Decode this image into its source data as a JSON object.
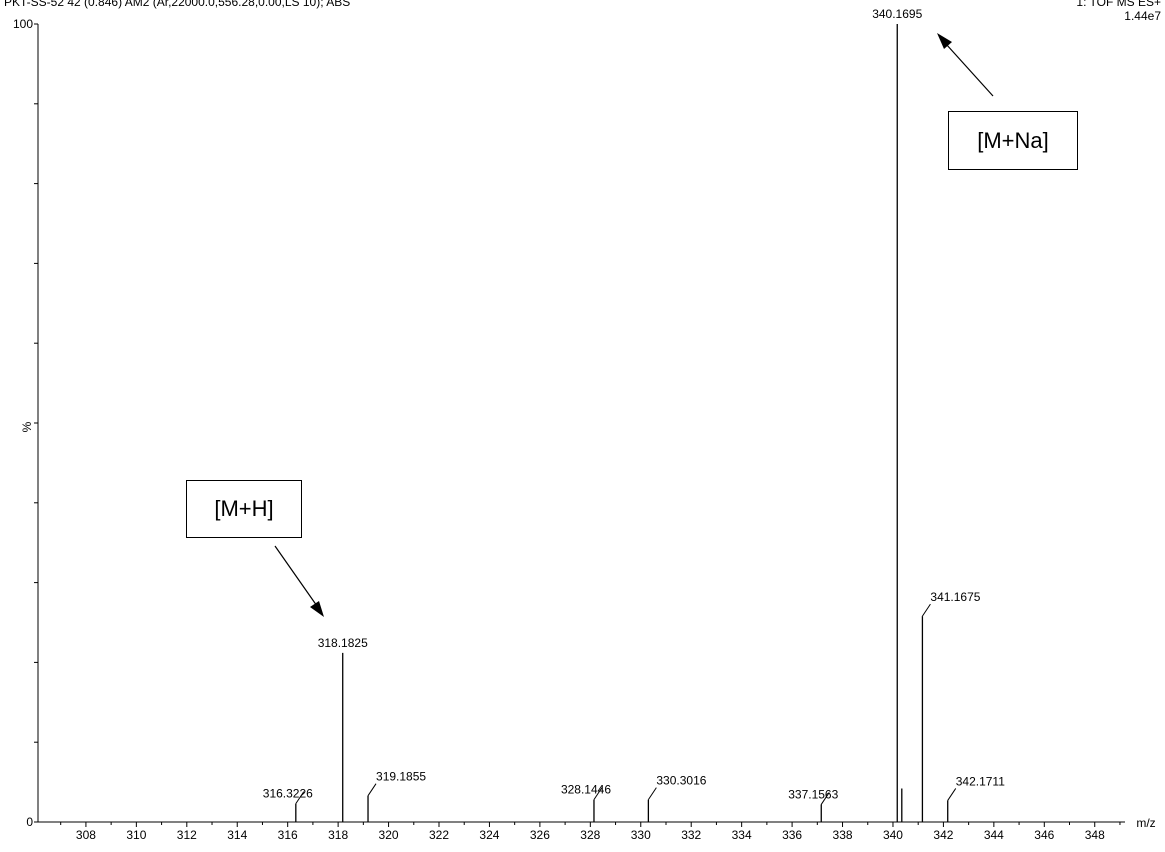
{
  "header": {
    "left": "PKT-SS-52 42 (0.846) AM2 (Ar,22000.0,556.28,0.00,LS 10); ABS",
    "right": "1: TOF MS ES+",
    "scale": "1.44e7"
  },
  "chart_data": {
    "type": "bar",
    "subtype": "mass-spectrum-sticks",
    "xlabel": "m/z",
    "ylabel": "%",
    "xlim": [
      306.1,
      349.2
    ],
    "ylim": [
      0,
      100
    ],
    "x_ticks": [
      308,
      310,
      312,
      314,
      316,
      318,
      320,
      322,
      324,
      326,
      328,
      330,
      332,
      334,
      336,
      338,
      340,
      342,
      344,
      346,
      348
    ],
    "y_ticks": [
      0,
      100
    ],
    "y_tick_labels": [
      "0",
      "100"
    ],
    "grid": false,
    "peaks": [
      {
        "mz": 316.3226,
        "intensity": 2.3,
        "label": "316.3226"
      },
      {
        "mz": 318.1825,
        "intensity": 21.2,
        "label": "318.1825"
      },
      {
        "mz": 319.1855,
        "intensity": 3.3,
        "label": "319.1855"
      },
      {
        "mz": 328.1446,
        "intensity": 2.8,
        "label": "328.1446"
      },
      {
        "mz": 330.3016,
        "intensity": 2.8,
        "label": "330.3016"
      },
      {
        "mz": 337.1563,
        "intensity": 2.2,
        "label": "337.1563"
      },
      {
        "mz": 340.1695,
        "intensity": 100,
        "label": "340.1695"
      },
      {
        "mz": 340.35,
        "intensity": 4.2,
        "label": ""
      },
      {
        "mz": 341.1675,
        "intensity": 25.8,
        "label": "341.1675"
      },
      {
        "mz": 342.1711,
        "intensity": 2.7,
        "label": "342.1711"
      }
    ],
    "annotations": [
      {
        "text": "[M+Na]",
        "target_mz": 340.1695
      },
      {
        "text": "[M+H]",
        "target_mz": 318.1825
      }
    ]
  }
}
